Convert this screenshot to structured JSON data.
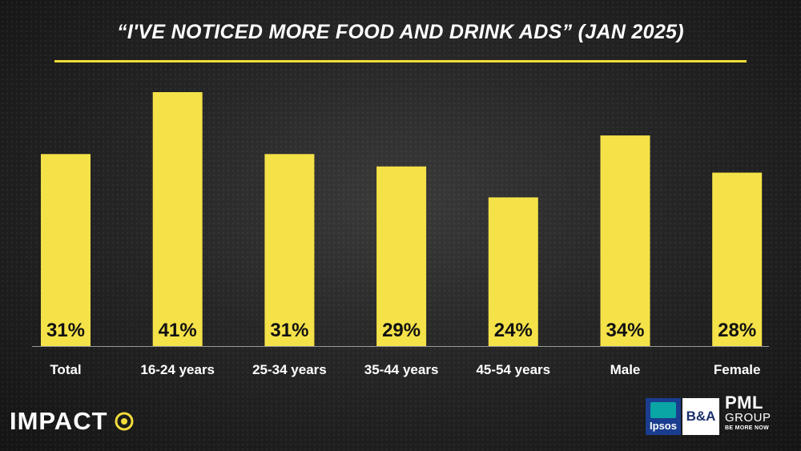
{
  "chart_data": {
    "type": "bar",
    "title": "“I'VE NOTICED MORE FOOD AND DRINK ADS” (JAN 2025)",
    "categories": [
      "Total",
      "16-24 years",
      "25-34 years",
      "35-44 years",
      "45-54 years",
      "Male",
      "Female"
    ],
    "values": [
      31,
      41,
      31,
      29,
      24,
      34,
      28
    ],
    "value_labels": [
      "31%",
      "41%",
      "31%",
      "29%",
      "24%",
      "34%",
      "28%"
    ],
    "unit": "%",
    "xlabel": "",
    "ylabel": "",
    "ylim": [
      0,
      41
    ],
    "grid": false,
    "legend": "none",
    "colors": {
      "bar": "#f5e249",
      "accent_rule": "#f2dc3a",
      "label_inside": "#111111"
    }
  },
  "branding": {
    "impact_logo": "IMPACT",
    "ipsos_logo": "Ipsos",
    "ba_logo": "B&A",
    "pml_logo_main": "PML",
    "pml_logo_sub": "GROUP",
    "pml_tagline": "BE MORE NOW"
  }
}
